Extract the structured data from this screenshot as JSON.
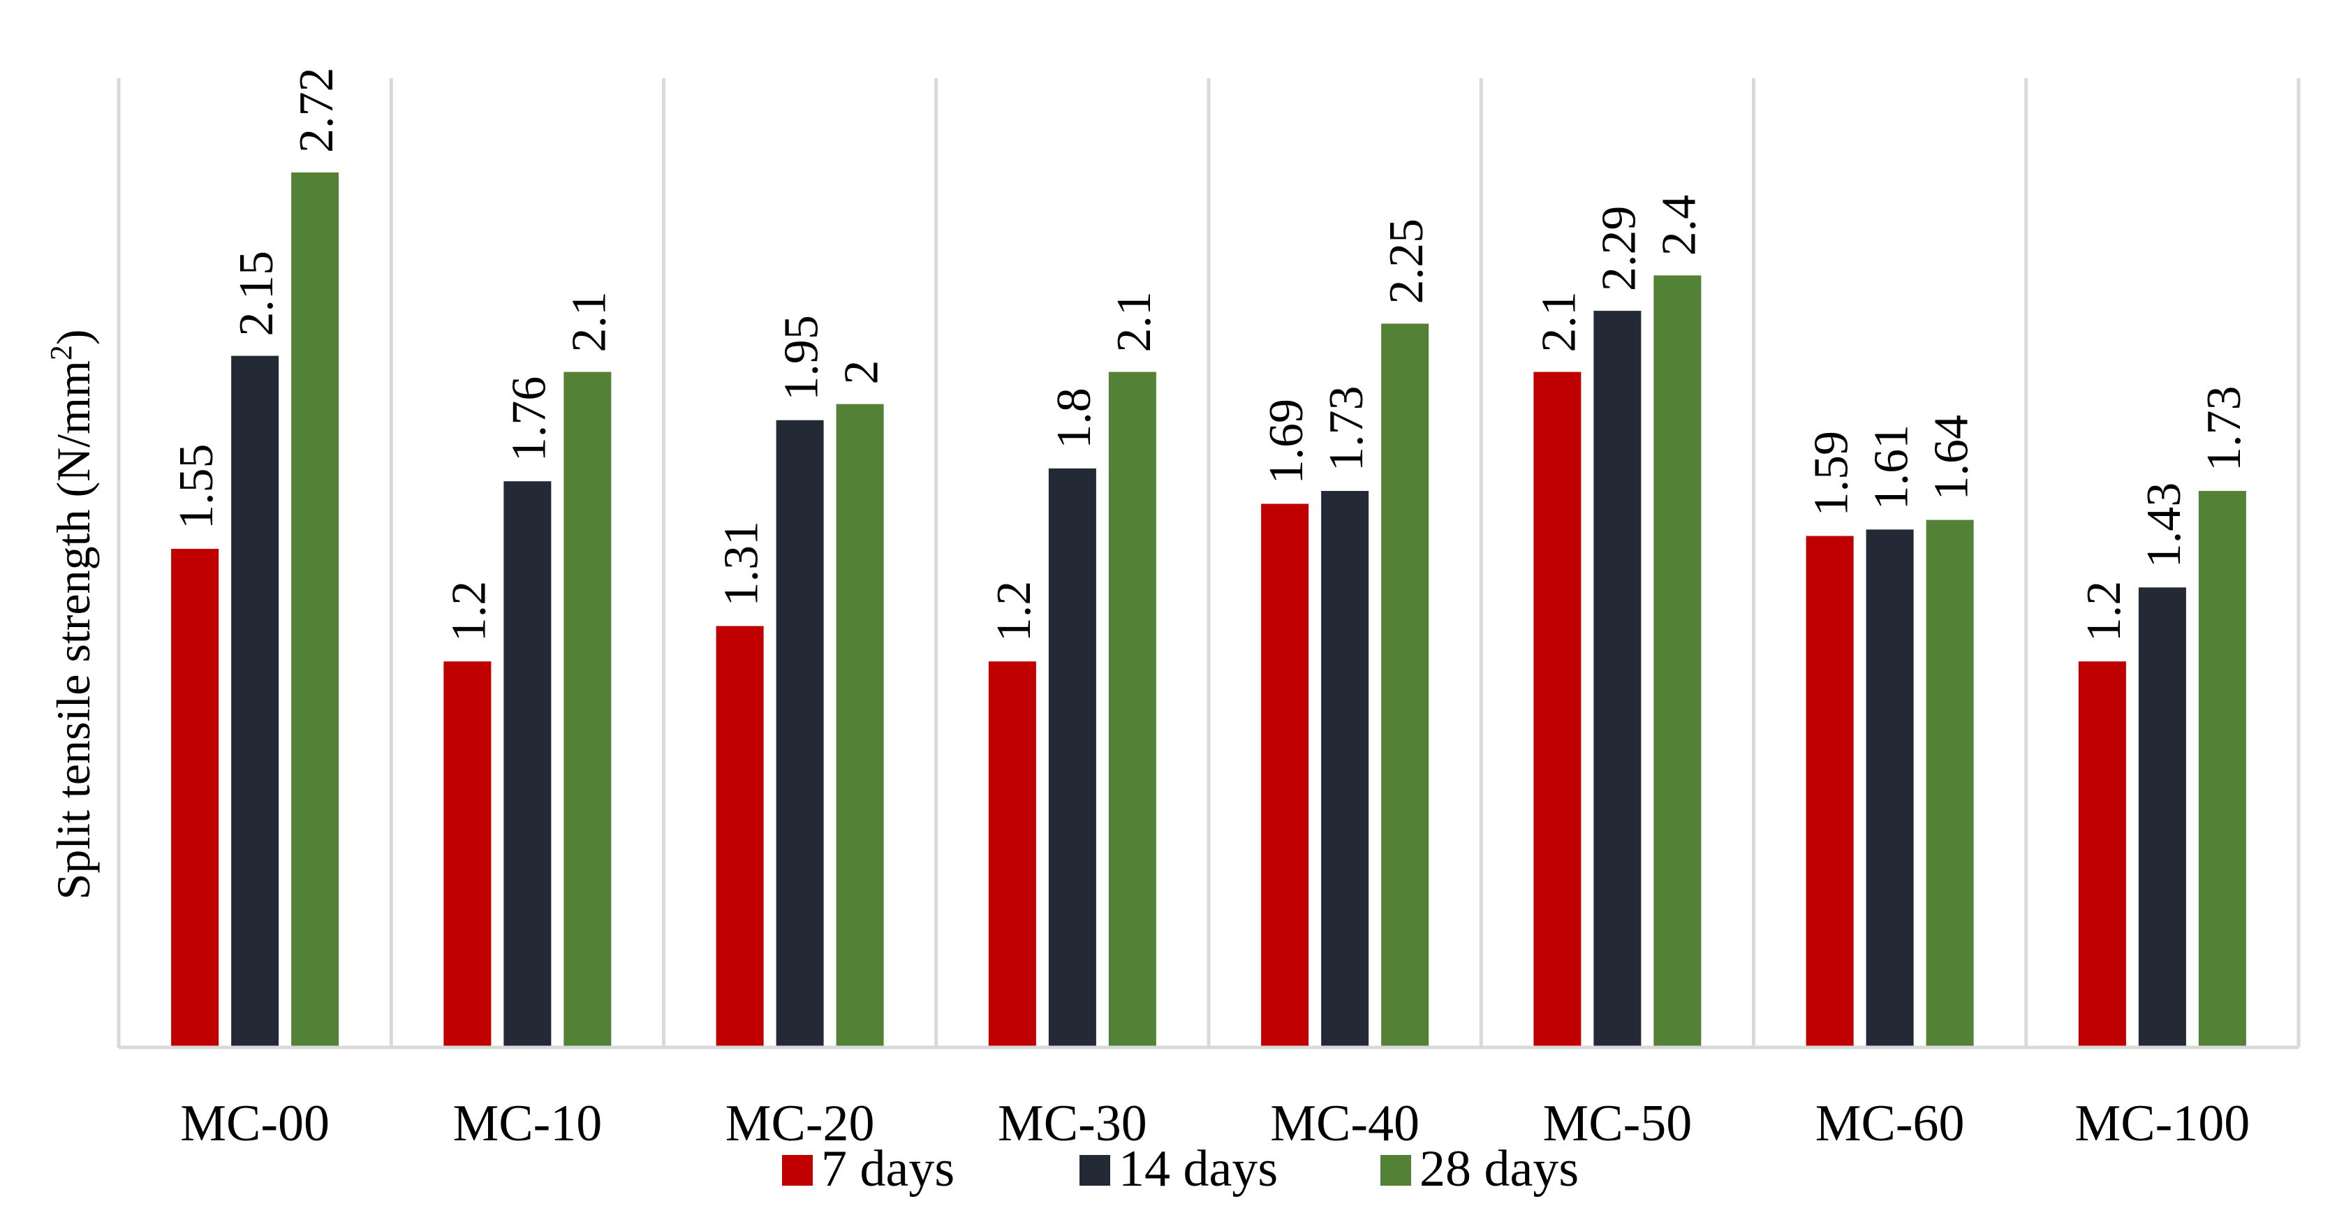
{
  "chart_data": {
    "type": "bar",
    "title": "",
    "xlabel": "",
    "ylabel": "Split tensile strength (N/mm",
    "ylabel_sup": "2",
    "ylabel_close": ")",
    "ylim": [
      0,
      2.72
    ],
    "grid": "vertical separators between categories",
    "legend_position": "bottom",
    "categories": [
      "MC-00",
      "MC-10",
      "MC-20",
      "MC-30",
      "MC-40",
      "MC-50",
      "MC-60",
      "MC-100"
    ],
    "series": [
      {
        "name": "7 days",
        "color": "#c00000",
        "values": [
          1.55,
          1.2,
          1.31,
          1.2,
          1.69,
          2.1,
          1.59,
          1.2
        ]
      },
      {
        "name": "14 days",
        "color": "#232a36",
        "values": [
          2.15,
          1.76,
          1.95,
          1.8,
          1.73,
          2.29,
          1.61,
          1.43
        ]
      },
      {
        "name": "28 days",
        "color": "#538135",
        "values": [
          2.72,
          2.1,
          2.0,
          2.1,
          2.25,
          2.4,
          1.64,
          1.73
        ]
      }
    ],
    "value_labels": [
      [
        "1.55",
        "1.2",
        "1.31",
        "1.2",
        "1.69",
        "2.1",
        "1.59",
        "1.2"
      ],
      [
        "2.15",
        "1.76",
        "1.95",
        "1.8",
        "1.73",
        "2.29",
        "1.61",
        "1.43"
      ],
      [
        "2.72",
        "2.1",
        "2",
        "2.1",
        "2.25",
        "2.4",
        "1.64",
        "1.73"
      ]
    ]
  }
}
